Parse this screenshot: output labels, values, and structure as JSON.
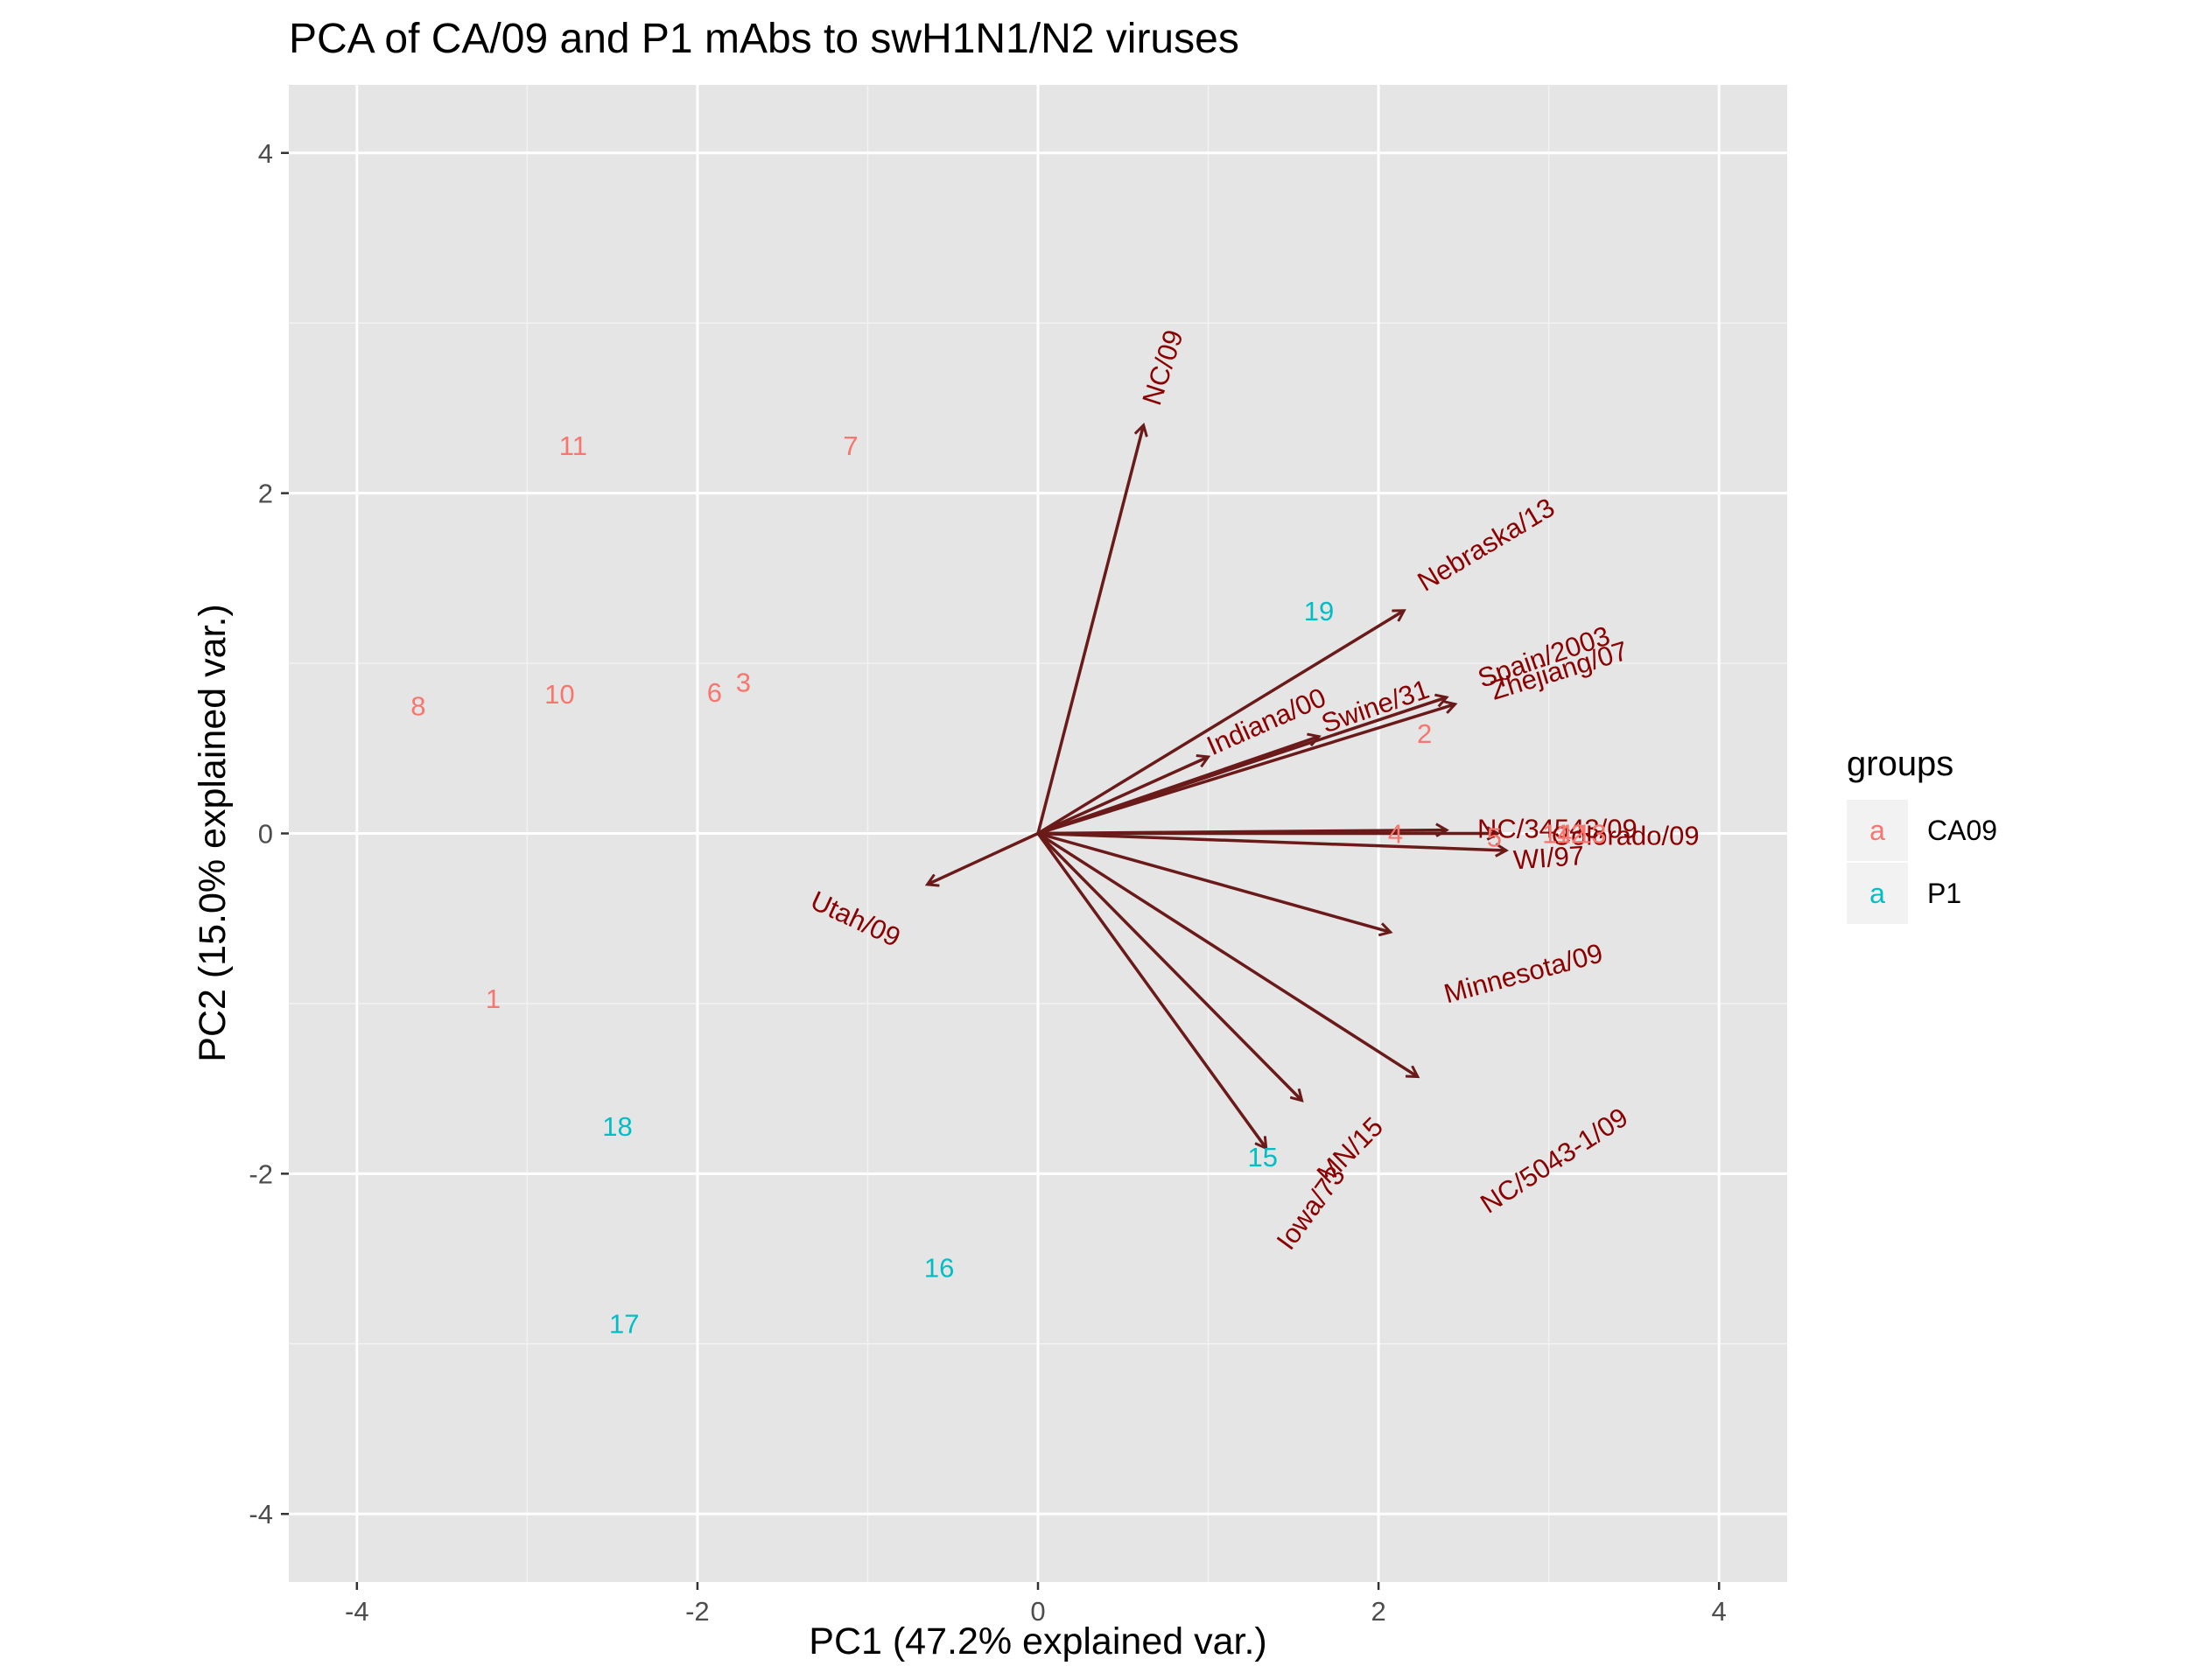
{
  "chart_data": {
    "type": "scatter",
    "title": "PCA of CA/09 and P1 mAbs to swH1N1/N2 viruses",
    "xlabel": "PC1 (47.2% explained var.)",
    "ylabel": "PC2 (15.0% explained var.)",
    "xlim": [
      -4.4,
      4.4
    ],
    "ylim": [
      -4.4,
      4.4
    ],
    "x_ticks": [
      -4,
      -2,
      0,
      2,
      4
    ],
    "y_ticks": [
      -4,
      -2,
      0,
      2,
      4
    ],
    "x_tick_labels": [
      "-4",
      "-2",
      "0",
      "2",
      "4"
    ],
    "y_tick_labels": [
      "-4",
      "-2",
      "0",
      "2",
      "4"
    ],
    "grid": true,
    "panel_background": "#e5e5e5",
    "legend": {
      "title": "groups",
      "position": "right",
      "key_glyph": "a",
      "entries": [
        {
          "name": "CA09",
          "color": "#f8766d"
        },
        {
          "name": "P1",
          "color": "#00bfc4"
        }
      ]
    },
    "series": [
      {
        "name": "CA09",
        "color": "#f8766d",
        "points": [
          {
            "label": "1",
            "x": -3.2,
            "y": -0.97
          },
          {
            "label": "2",
            "x": 2.27,
            "y": 0.59
          },
          {
            "label": "3",
            "x": -1.73,
            "y": 0.89
          },
          {
            "label": "4",
            "x": 2.1,
            "y": 0.0
          },
          {
            "label": "5",
            "x": 2.68,
            "y": -0.02
          },
          {
            "label": "6",
            "x": -1.9,
            "y": 0.83
          },
          {
            "label": "7",
            "x": -1.1,
            "y": 2.28
          },
          {
            "label": "8",
            "x": -3.64,
            "y": 0.75
          },
          {
            "label": "10",
            "x": -2.81,
            "y": 0.82
          },
          {
            "label": "11",
            "x": -2.73,
            "y": 2.28
          },
          {
            "label": "12",
            "x": 3.13,
            "y": 0.0
          },
          {
            "label": "13",
            "x": 3.25,
            "y": 0.0
          },
          {
            "label": "14",
            "x": 3.05,
            "y": 0.0
          }
        ]
      },
      {
        "name": "P1",
        "color": "#00bfc4",
        "points": [
          {
            "label": "15",
            "x": 1.32,
            "y": -1.9
          },
          {
            "label": "16",
            "x": -0.58,
            "y": -2.55
          },
          {
            "label": "17",
            "x": -2.43,
            "y": -2.88
          },
          {
            "label": "18",
            "x": -2.47,
            "y": -1.72
          },
          {
            "label": "19",
            "x": 1.65,
            "y": 1.31
          }
        ]
      }
    ],
    "loadings": {
      "color": "#6b1a1a",
      "label_color": "#8b0000",
      "arrows": [
        {
          "label": "NC/09",
          "x": 0.62,
          "y": 2.4,
          "label_x": 0.73,
          "label_y": 2.74,
          "angle": 72
        },
        {
          "label": "Nebraska/13",
          "x": 2.15,
          "y": 1.31,
          "label_x": 2.63,
          "label_y": 1.7,
          "angle": 31
        },
        {
          "label": "Indiana/00",
          "x": 1.0,
          "y": 0.45,
          "label_x": 1.34,
          "label_y": 0.66,
          "angle": 24
        },
        {
          "label": "Swine/31",
          "x": 1.65,
          "y": 0.57,
          "label_x": 1.98,
          "label_y": 0.75,
          "angle": 19
        },
        {
          "label": "Spain/2003",
          "x": 2.4,
          "y": 0.8,
          "label_x": 2.97,
          "label_y": 1.04,
          "angle": 19
        },
        {
          "label": "Zhejiang/07",
          "x": 2.45,
          "y": 0.76,
          "label_x": 3.06,
          "label_y": 0.96,
          "angle": 17
        },
        {
          "label": "NC/34543/09",
          "x": 2.4,
          "y": 0.02,
          "label_x": 3.05,
          "label_y": 0.03,
          "angle": 0
        },
        {
          "label": "Colorado/09",
          "x": 2.7,
          "y": 0.0,
          "label_x": 3.45,
          "label_y": -0.01,
          "angle": 0
        },
        {
          "label": "WI/97",
          "x": 2.75,
          "y": -0.1,
          "label_x": 3.0,
          "label_y": -0.14,
          "angle": 4
        },
        {
          "label": "Utah/09",
          "x": -0.65,
          "y": -0.3,
          "label_x": -1.07,
          "label_y": -0.5,
          "angle": -25
        },
        {
          "label": "Minnesota/09",
          "x": 2.07,
          "y": -0.58,
          "label_x": 2.85,
          "label_y": -0.82,
          "angle": 15
        },
        {
          "label": "NC/5043-1/09",
          "x": 2.23,
          "y": -1.43,
          "label_x": 3.03,
          "label_y": -1.92,
          "angle": 33
        },
        {
          "label": "MN/15",
          "x": 1.55,
          "y": -1.57,
          "label_x": 1.83,
          "label_y": -1.86,
          "angle": 45
        },
        {
          "label": "Iowa/73",
          "x": 1.34,
          "y": -1.85,
          "label_x": 1.6,
          "label_y": -2.2,
          "angle": 54
        }
      ]
    }
  }
}
